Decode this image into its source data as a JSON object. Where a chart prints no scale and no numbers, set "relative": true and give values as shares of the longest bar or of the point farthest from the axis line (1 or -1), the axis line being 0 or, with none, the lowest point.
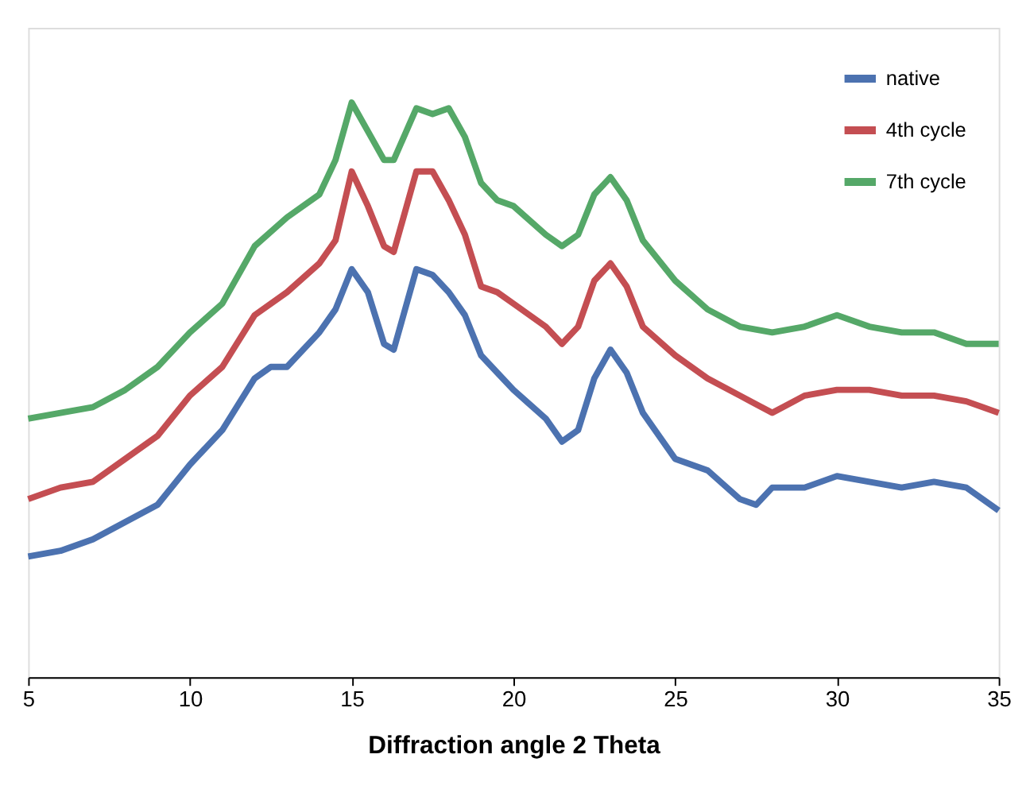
{
  "chart_data": {
    "type": "line",
    "xlabel": "Diffraction angle 2 Theta",
    "relative": true,
    "xlim": [
      5,
      35
    ],
    "xticks": [
      5,
      10,
      15,
      20,
      25,
      30,
      35
    ],
    "grid": false,
    "legend": "top right",
    "marker": "none",
    "line_style": "solid",
    "series": [
      {
        "name": "native",
        "color": "#4c72b0",
        "x": [
          5,
          6,
          7,
          8,
          9,
          10,
          11,
          12,
          12.5,
          13,
          14,
          14.5,
          15,
          15.5,
          16,
          16.3,
          17,
          17.5,
          18,
          18.5,
          19,
          19.5,
          20,
          21,
          21.5,
          22,
          22.5,
          23,
          23.5,
          24,
          25,
          26,
          27,
          27.5,
          28,
          29,
          30,
          31,
          32,
          33,
          34,
          35
        ],
        "values": [
          0.21,
          0.22,
          0.24,
          0.27,
          0.3,
          0.37,
          0.43,
          0.52,
          0.54,
          0.54,
          0.6,
          0.64,
          0.71,
          0.67,
          0.58,
          0.57,
          0.71,
          0.7,
          0.67,
          0.63,
          0.56,
          0.53,
          0.5,
          0.45,
          0.41,
          0.43,
          0.52,
          0.57,
          0.53,
          0.46,
          0.38,
          0.36,
          0.31,
          0.3,
          0.33,
          0.33,
          0.35,
          0.34,
          0.33,
          0.34,
          0.33,
          0.29
        ]
      },
      {
        "name": "4th cycle",
        "color": "#c44e52",
        "x": [
          5,
          6,
          7,
          8,
          9,
          10,
          11,
          12,
          13,
          14,
          14.5,
          15,
          15.5,
          16,
          16.3,
          17,
          17.5,
          18,
          18.5,
          19,
          19.5,
          20,
          21,
          21.5,
          22,
          22.5,
          23,
          23.5,
          24,
          25,
          26,
          27,
          28,
          29,
          30,
          31,
          32,
          33,
          34,
          35
        ],
        "values": [
          0.31,
          0.33,
          0.34,
          0.38,
          0.42,
          0.49,
          0.54,
          0.63,
          0.67,
          0.72,
          0.76,
          0.88,
          0.82,
          0.75,
          0.74,
          0.88,
          0.88,
          0.83,
          0.77,
          0.68,
          0.67,
          0.65,
          0.61,
          0.58,
          0.61,
          0.69,
          0.72,
          0.68,
          0.61,
          0.56,
          0.52,
          0.49,
          0.46,
          0.49,
          0.5,
          0.5,
          0.49,
          0.49,
          0.48,
          0.46
        ]
      },
      {
        "name": "7th cycle",
        "color": "#55a868",
        "x": [
          5,
          6,
          7,
          8,
          9,
          10,
          11,
          12,
          13,
          14,
          14.5,
          15,
          15.5,
          16,
          16.3,
          17,
          17.5,
          18,
          18.5,
          19,
          19.5,
          20,
          21,
          21.5,
          22,
          22.5,
          23,
          23.5,
          24,
          25,
          26,
          27,
          28,
          29,
          30,
          31,
          32,
          33,
          34,
          35
        ],
        "values": [
          0.45,
          0.46,
          0.47,
          0.5,
          0.54,
          0.6,
          0.65,
          0.75,
          0.8,
          0.84,
          0.9,
          1,
          0.95,
          0.9,
          0.9,
          0.99,
          0.98,
          0.99,
          0.94,
          0.86,
          0.83,
          0.82,
          0.77,
          0.75,
          0.77,
          0.84,
          0.87,
          0.83,
          0.76,
          0.69,
          0.64,
          0.61,
          0.6,
          0.61,
          0.63,
          0.61,
          0.6,
          0.6,
          0.58,
          0.58
        ]
      }
    ]
  }
}
